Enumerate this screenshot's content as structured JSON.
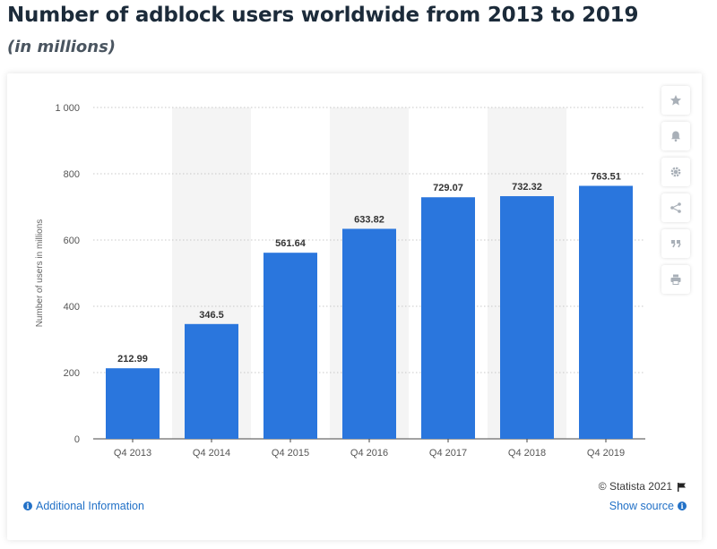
{
  "header": {
    "title": "Number of adblock users worldwide from 2013 to 2019",
    "subtitle": "(in millions)"
  },
  "chart_data": {
    "type": "bar",
    "title": "Number of adblock users worldwide from 2013 to 2019",
    "subtitle": "(in millions)",
    "xlabel": "",
    "ylabel": "Number of users in millions",
    "categories": [
      "Q4 2013",
      "Q4 2014",
      "Q4 2015",
      "Q4 2016",
      "Q4 2017",
      "Q4 2018",
      "Q4 2019"
    ],
    "values": [
      212.99,
      346.5,
      561.64,
      633.82,
      729.07,
      732.32,
      763.51
    ],
    "value_labels": [
      "212.99",
      "346.5",
      "561.64",
      "633.82",
      "729.07",
      "732.32",
      "763.51"
    ],
    "ylim": [
      0,
      1000
    ],
    "yticks": [
      0,
      200,
      400,
      600,
      800,
      1000
    ],
    "ytick_labels": [
      "0",
      "200",
      "400",
      "600",
      "800",
      "1 000"
    ],
    "grid": true,
    "bar_color": "#2a76dd",
    "alt_band_color": "#f4f4f4"
  },
  "sidebar": {
    "icons": [
      "star-icon",
      "bell-icon",
      "gear-icon",
      "share-icon",
      "quote-icon",
      "print-icon"
    ]
  },
  "footer": {
    "copyright": "© Statista 2021",
    "additional_info": "Additional Information",
    "show_source": "Show source"
  },
  "colors": {
    "link": "#2271c7",
    "bar": "#2a76dd"
  }
}
